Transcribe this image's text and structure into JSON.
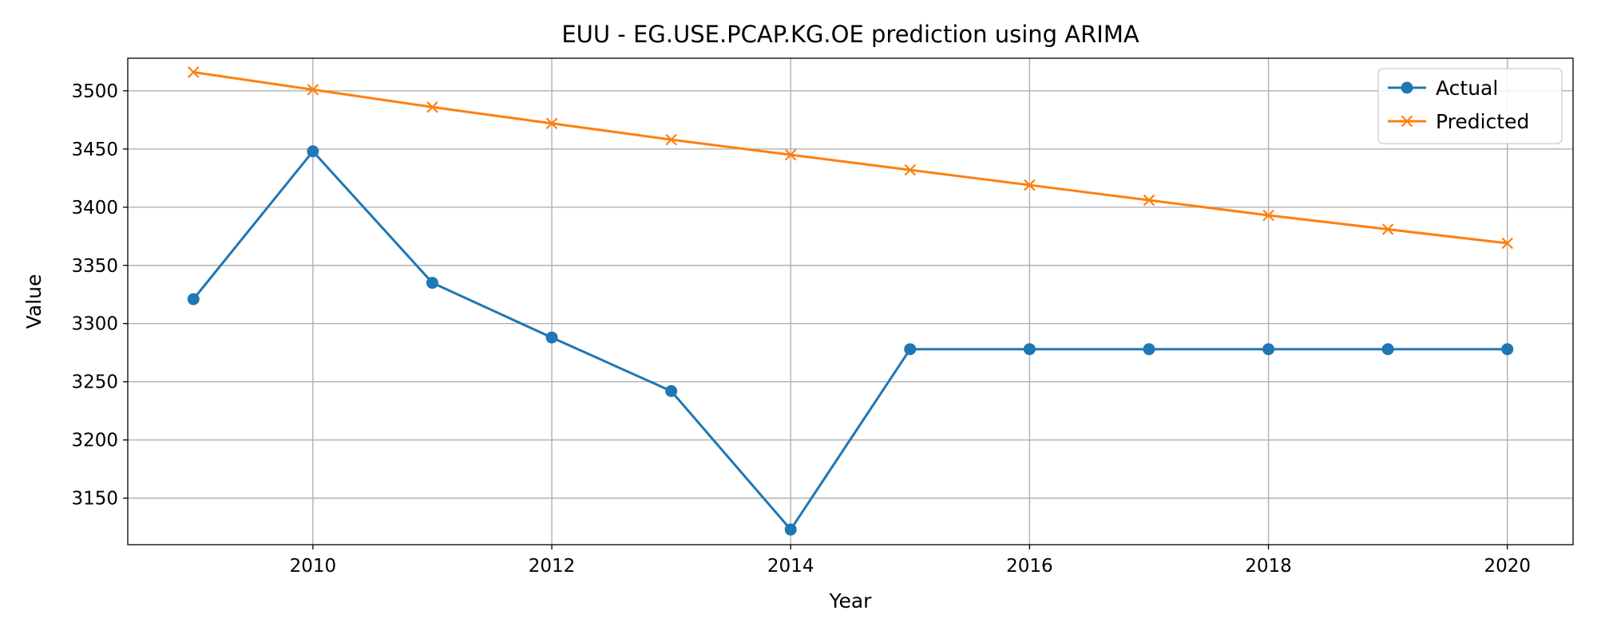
{
  "chart_data": {
    "type": "line",
    "title": "EUU - EG.USE.PCAP.KG.OE prediction using ARIMA",
    "xlabel": "Year",
    "ylabel": "Value",
    "x": [
      2009,
      2010,
      2011,
      2012,
      2013,
      2014,
      2015,
      2016,
      2017,
      2018,
      2019,
      2020
    ],
    "xlim": [
      2008.45,
      2020.55
    ],
    "ylim": [
      3110,
      3528
    ],
    "xticks": [
      2010,
      2012,
      2014,
      2016,
      2018,
      2020
    ],
    "yticks": [
      3150,
      3200,
      3250,
      3300,
      3350,
      3400,
      3450,
      3500
    ],
    "grid": true,
    "legend": "top-right",
    "series": [
      {
        "name": "Actual",
        "color": "#1f77b4",
        "marker": "circle",
        "values": [
          3321,
          3448,
          3335,
          3288,
          3242,
          3123,
          3278,
          3278,
          3278,
          3278,
          3278,
          3278
        ]
      },
      {
        "name": "Predicted",
        "color": "#ff7f0e",
        "marker": "x",
        "values": [
          3516,
          3501,
          3486,
          3472,
          3458,
          3445,
          3432,
          3419,
          3406,
          3393,
          3381,
          3369
        ]
      }
    ]
  }
}
